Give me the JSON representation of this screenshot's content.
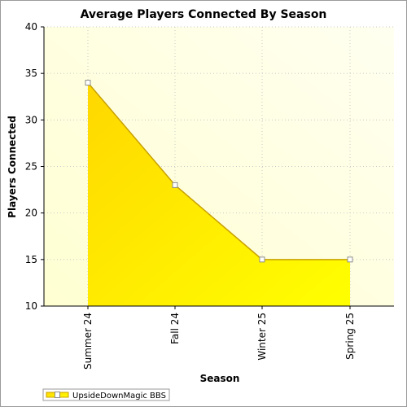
{
  "chart_data": {
    "type": "area",
    "title": "Average Players Connected By Season",
    "xlabel": "Season",
    "ylabel": "Players Connected",
    "categories": [
      "Summer 24",
      "Fall 24",
      "Winter 25",
      "Spring 25"
    ],
    "series": [
      {
        "name": "UpsideDownMagic BBS",
        "values": [
          34,
          23,
          15,
          15
        ]
      }
    ],
    "ylim": [
      10,
      40
    ],
    "yticks": [
      10,
      15,
      20,
      25,
      30,
      35,
      40
    ],
    "grid": true,
    "legend": "bottom-left",
    "colors": {
      "fill_start": "#ffd700",
      "fill_end": "#ffff00",
      "line": "#c8a000",
      "plot_bg_light": "#fffff0",
      "plot_bg_dark": "#ffffd2",
      "grid": "#c8c8c8"
    }
  }
}
